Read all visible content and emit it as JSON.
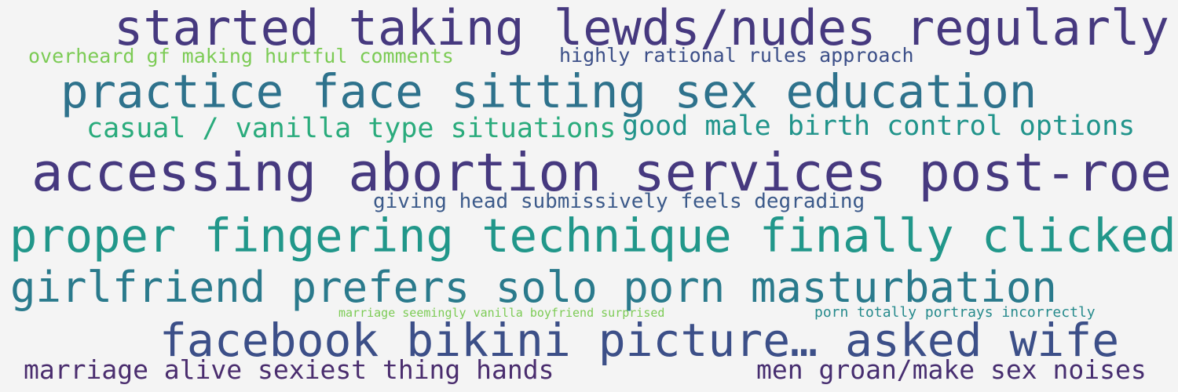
{
  "words": [
    {
      "text": "started taking lewds/nudes regularly",
      "color": "#46397f"
    },
    {
      "text": "overheard gf making hurtful comments",
      "color": "#7ccb55"
    },
    {
      "text": "highly rational rules approach",
      "color": "#3c4f88"
    },
    {
      "text": "practice face sitting sex education",
      "color": "#2e728c"
    },
    {
      "text": "casual / vanilla type situations",
      "color": "#2aab7c"
    },
    {
      "text": "good male birth control options",
      "color": "#21948b"
    },
    {
      "text": "accessing abortion services post-roe",
      "color": "#46397f"
    },
    {
      "text": "giving head submissively feels degrading",
      "color": "#3c5a8a"
    },
    {
      "text": "proper fingering technique finally clicked",
      "color": "#21978a"
    },
    {
      "text": "girlfriend prefers solo porn masturbation",
      "color": "#2a7a8c"
    },
    {
      "text": "marriage seemingly vanilla boyfriend surprised",
      "color": "#7ccb55"
    },
    {
      "text": "porn totally portrays incorrectly",
      "color": "#268a8c"
    },
    {
      "text": "facebook bikini picture… asked wife",
      "color": "#3c4f88"
    },
    {
      "text": "marriage alive sexiest thing hands",
      "color": "#4a2d6e"
    },
    {
      "text": "men groan/make sex noises",
      "color": "#472e70"
    }
  ]
}
